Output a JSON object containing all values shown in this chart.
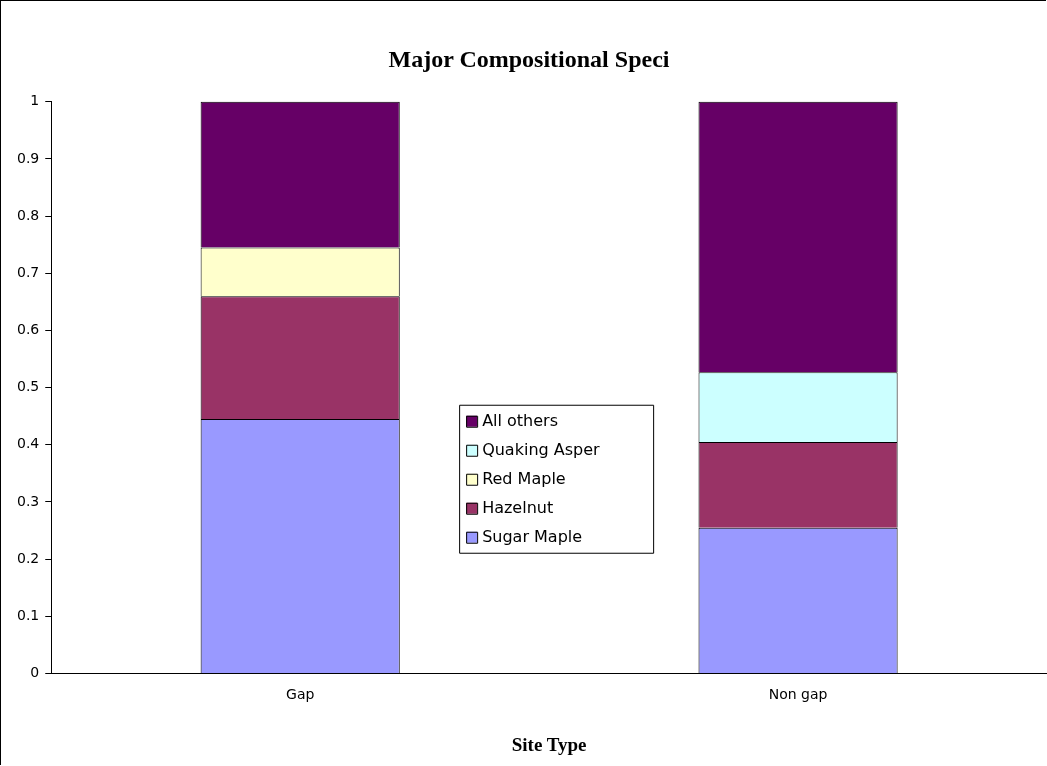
{
  "chart_data": {
    "type": "bar",
    "title": "Major Compositional Speci",
    "xlabel": "Site Type",
    "categories": [
      "Gap",
      "Non gap"
    ],
    "series": [
      {
        "name": "Sugar Maple",
        "color": "#9999ff",
        "values": [
          0.445,
          0.255
        ]
      },
      {
        "name": "Hazelnut",
        "color": "#993366",
        "values": [
          0.215,
          0.15
        ]
      },
      {
        "name": "Red Maple",
        "color": "#ffffcc",
        "values": [
          0.085,
          null
        ]
      },
      {
        "name": "Quaking Asper",
        "color": "#ccffff",
        "values": [
          null,
          0.122
        ]
      },
      {
        "name": "All others",
        "color": "#660066",
        "values": [
          0.255,
          0.473
        ]
      }
    ],
    "stacked": true,
    "ylim": [
      0,
      1
    ],
    "yticks": [
      0,
      0.1,
      0.2,
      0.3,
      0.4,
      0.5,
      0.6,
      0.7,
      0.8,
      0.9,
      1
    ],
    "grid": false,
    "legend": "center"
  }
}
